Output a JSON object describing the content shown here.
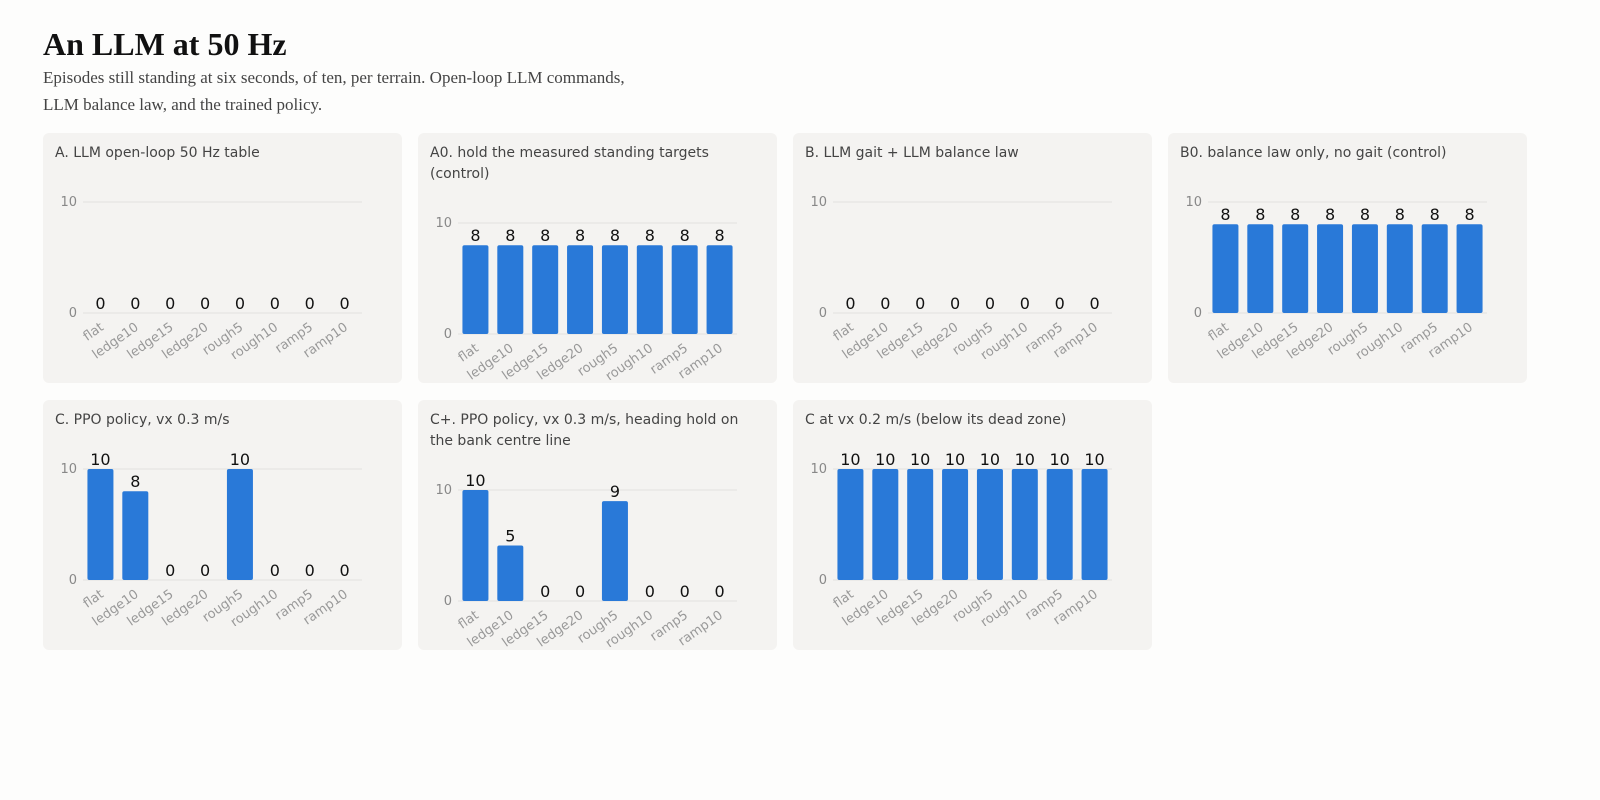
{
  "header": {
    "title": "An LLM at 50 Hz",
    "subtitle": "Episodes still standing at six seconds, of ten, per terrain. Open-loop LLM commands, LLM balance law, and the trained policy."
  },
  "chart_data": [
    {
      "type": "bar",
      "title": "A. LLM open-loop 50 Hz table",
      "categories": [
        "flat",
        "ledge10",
        "ledge15",
        "ledge20",
        "rough5",
        "rough10",
        "ramp5",
        "ramp10"
      ],
      "values": [
        0,
        0,
        0,
        0,
        0,
        0,
        0,
        0
      ],
      "color": "#2979d8",
      "ylim": [
        0,
        10
      ],
      "yticks": [
        0,
        10
      ],
      "grid": true
    },
    {
      "type": "bar",
      "title": "A0. hold the measured standing targets (control)",
      "categories": [
        "flat",
        "ledge10",
        "ledge15",
        "ledge20",
        "rough5",
        "rough10",
        "ramp5",
        "ramp10"
      ],
      "values": [
        8,
        8,
        8,
        8,
        8,
        8,
        8,
        8
      ],
      "color": "#2979d8",
      "ylim": [
        0,
        10
      ],
      "yticks": [
        0,
        10
      ],
      "grid": true
    },
    {
      "type": "bar",
      "title": "B. LLM gait + LLM balance law",
      "categories": [
        "flat",
        "ledge10",
        "ledge15",
        "ledge20",
        "rough5",
        "rough10",
        "ramp5",
        "ramp10"
      ],
      "values": [
        0,
        0,
        0,
        0,
        0,
        0,
        0,
        0
      ],
      "color": "#2979d8",
      "ylim": [
        0,
        10
      ],
      "yticks": [
        0,
        10
      ],
      "grid": true
    },
    {
      "type": "bar",
      "title": "B0. balance law only, no gait (control)",
      "categories": [
        "flat",
        "ledge10",
        "ledge15",
        "ledge20",
        "rough5",
        "rough10",
        "ramp5",
        "ramp10"
      ],
      "values": [
        8,
        8,
        8,
        8,
        8,
        8,
        8,
        8
      ],
      "color": "#2979d8",
      "ylim": [
        0,
        10
      ],
      "yticks": [
        0,
        10
      ],
      "grid": true
    },
    {
      "type": "bar",
      "title": "C. PPO policy, vx 0.3 m/s",
      "categories": [
        "flat",
        "ledge10",
        "ledge15",
        "ledge20",
        "rough5",
        "rough10",
        "ramp5",
        "ramp10"
      ],
      "values": [
        10,
        8,
        0,
        0,
        10,
        0,
        0,
        0
      ],
      "color": "#2979d8",
      "ylim": [
        0,
        10
      ],
      "yticks": [
        0,
        10
      ],
      "grid": true
    },
    {
      "type": "bar",
      "title": "C+. PPO policy, vx 0.3 m/s, heading hold on the bank centre line",
      "categories": [
        "flat",
        "ledge10",
        "ledge15",
        "ledge20",
        "rough5",
        "rough10",
        "ramp5",
        "ramp10"
      ],
      "values": [
        10,
        5,
        0,
        0,
        9,
        0,
        0,
        0
      ],
      "color": "#2979d8",
      "ylim": [
        0,
        10
      ],
      "yticks": [
        0,
        10
      ],
      "grid": true
    },
    {
      "type": "bar",
      "title": "C at vx 0.2 m/s (below its dead zone)",
      "categories": [
        "flat",
        "ledge10",
        "ledge15",
        "ledge20",
        "rough5",
        "rough10",
        "ramp5",
        "ramp10"
      ],
      "values": [
        10,
        10,
        10,
        10,
        10,
        10,
        10,
        10
      ],
      "color": "#2979d8",
      "ylim": [
        0,
        10
      ],
      "yticks": [
        0,
        10
      ],
      "grid": true
    }
  ]
}
